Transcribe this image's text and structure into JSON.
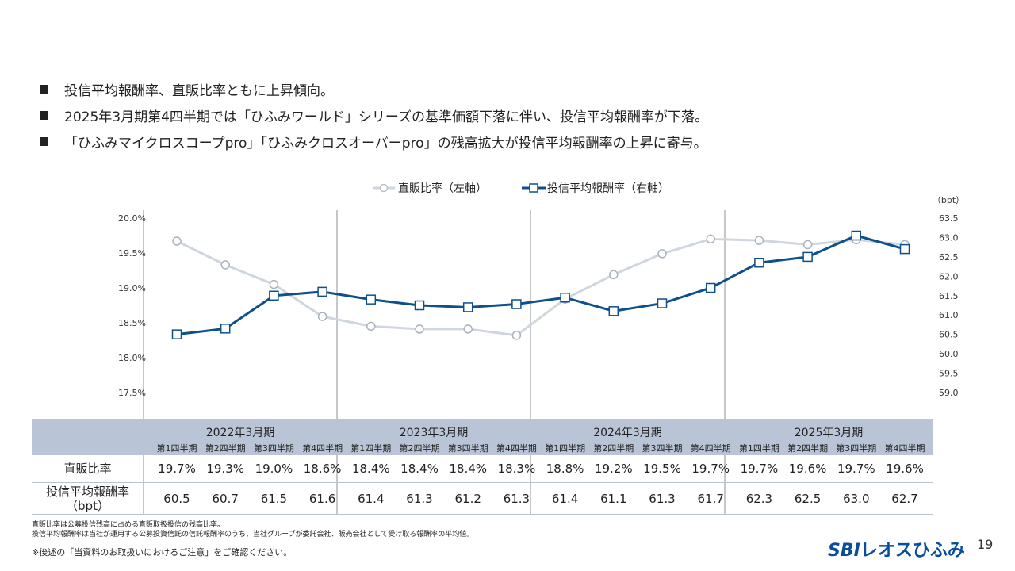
{
  "bullets": [
    "投信平均報酬率、直販比率ともに上昇傾向。",
    "2025年3月期第4四半期では「ひふみワールド」シリーズの基準価額下落に伴い、投信平均報酬率が下落。",
    "「ひふみマイクロスコープpro」「ひふみクロスオーバーpro」の残高拡大が投信平均報酬率の上昇に寄与。"
  ],
  "chart_data": {
    "type": "line",
    "title": "",
    "right_axis_unit": "（bpt）",
    "categories": [
      "第1四半期",
      "第2四半期",
      "第3四半期",
      "第4四半期",
      "第1四半期",
      "第2四半期",
      "第3四半期",
      "第4四半期",
      "第1四半期",
      "第2四半期",
      "第3四半期",
      "第4四半期",
      "第1四半期",
      "第2四半期",
      "第3四半期",
      "第4四半期"
    ],
    "left_axis": {
      "min": 17.5,
      "max": 20.0,
      "step": 0.5,
      "ticks": [
        "20.0%",
        "19.5%",
        "19.0%",
        "18.5%",
        "18.0%",
        "17.5%"
      ]
    },
    "right_axis": {
      "min": 59.0,
      "max": 63.5,
      "step": 0.5,
      "ticks": [
        "63.5",
        "63.0",
        "62.5",
        "62.0",
        "61.5",
        "61.0",
        "60.5",
        "60.0",
        "59.5",
        "59.0"
      ]
    },
    "series": [
      {
        "name": "直販比率（左軸）",
        "axis": "left",
        "color": "#d0d6de",
        "marker": "circle",
        "values": [
          19.67,
          19.33,
          19.05,
          18.59,
          18.45,
          18.41,
          18.41,
          18.32,
          18.84,
          19.19,
          19.49,
          19.7,
          19.68,
          19.62,
          19.69,
          19.62
        ]
      },
      {
        "name": "投信平均報酬率（右軸）",
        "axis": "right",
        "color": "#0e4f8c",
        "marker": "square",
        "values": [
          60.5,
          60.65,
          61.5,
          61.6,
          61.4,
          61.25,
          61.2,
          61.28,
          61.45,
          61.1,
          61.3,
          61.7,
          62.35,
          62.5,
          63.05,
          62.7
        ]
      }
    ],
    "legend_position": "top-center"
  },
  "table": {
    "years": [
      "2022年3月期",
      "2023年3月期",
      "2024年3月期",
      "2025年3月期"
    ],
    "quarters": [
      "第1四半期",
      "第2四半期",
      "第3四半期",
      "第4四半期",
      "第1四半期",
      "第2四半期",
      "第3四半期",
      "第4四半期",
      "第1四半期",
      "第2四半期",
      "第3四半期",
      "第4四半期",
      "第1四半期",
      "第2四半期",
      "第3四半期",
      "第4四半期"
    ],
    "row1_label": "直販比率",
    "row1_values": [
      "19.7%",
      "19.3%",
      "19.0%",
      "18.6%",
      "18.4%",
      "18.4%",
      "18.4%",
      "18.3%",
      "18.8%",
      "19.2%",
      "19.5%",
      "19.7%",
      "19.7%",
      "19.6%",
      "19.7%",
      "19.6%"
    ],
    "row2_label_line1": "投信平均報酬率",
    "row2_label_line2": "（bpt）",
    "row2_values": [
      "60.5",
      "60.7",
      "61.5",
      "61.6",
      "61.4",
      "61.3",
      "61.2",
      "61.3",
      "61.4",
      "61.1",
      "61.3",
      "61.7",
      "62.3",
      "62.5",
      "63.0",
      "62.7"
    ]
  },
  "notes": [
    "直販比率は公募投信残高に占める直販取扱投信の残高比率。",
    "投信平均報酬率は当社が運用する公募投資信託の信託報酬率のうち、当社グループが委託会社、販売会社として受け取る報酬率の平均値。"
  ],
  "note_confirm": "※後述の「当資料のお取扱いにおけるご注意」をご確認ください。",
  "logo_sbi": "SBI",
  "logo_brand": "レオスひふみ",
  "page_number": "19"
}
